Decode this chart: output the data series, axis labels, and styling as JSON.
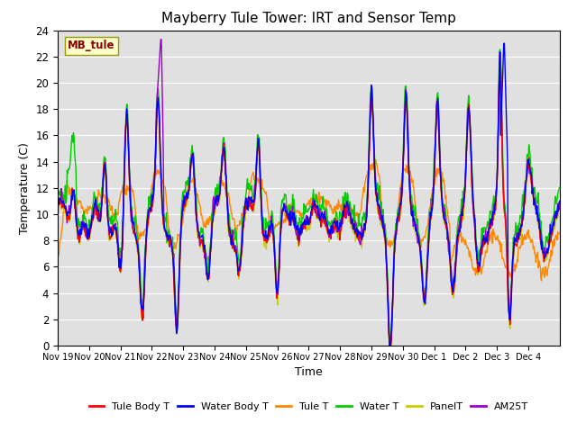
{
  "title": "Mayberry Tule Tower: IRT and Sensor Temp",
  "xlabel": "Time",
  "ylabel": "Temperature (C)",
  "ylim": [
    0,
    24
  ],
  "yticks": [
    0,
    2,
    4,
    6,
    8,
    10,
    12,
    14,
    16,
    18,
    20,
    22,
    24
  ],
  "xtick_labels": [
    "Nov 19",
    "Nov 20",
    "Nov 21",
    "Nov 22",
    "Nov 23",
    "Nov 24",
    "Nov 25",
    "Nov 26",
    "Nov 27",
    "Nov 28",
    "Nov 29",
    "Nov 30",
    "Dec 1",
    "Dec 2",
    "Dec 3",
    "Dec 4"
  ],
  "legend_entries": [
    "Tule Body T",
    "Water Body T",
    "Tule T",
    "Water T",
    "PanelT",
    "AM25T"
  ],
  "legend_colors": [
    "#ff0000",
    "#0000ff",
    "#ff8800",
    "#00cc00",
    "#cccc00",
    "#9900cc"
  ],
  "line_colors": {
    "tule_body": "#ff0000",
    "water_body": "#0000ff",
    "tule": "#ff8800",
    "water": "#00cc00",
    "panel": "#cccc00",
    "am25": "#9900cc"
  },
  "watermark_text": "MB_tule",
  "watermark_color": "#880000",
  "watermark_bg": "#ffffcc",
  "bg_color": "#e0e0e0",
  "title_fontsize": 11,
  "n_points": 800
}
